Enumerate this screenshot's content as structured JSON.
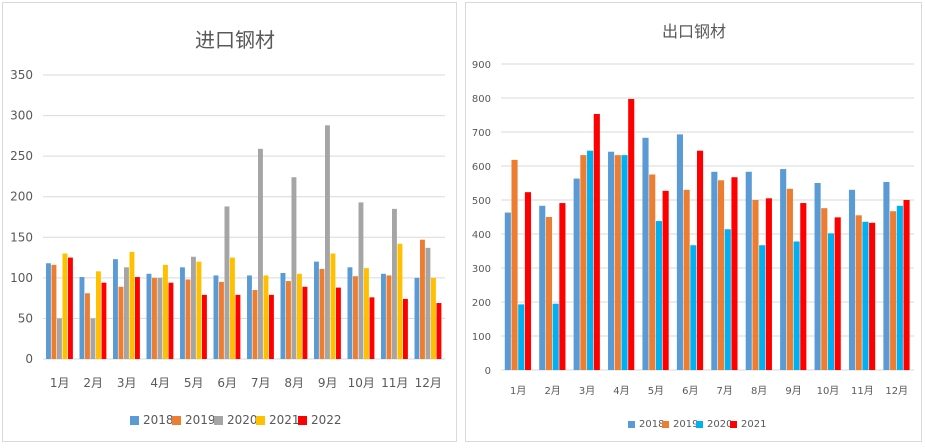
{
  "chart_data": [
    {
      "type": "bar",
      "title": "进口钢材",
      "categories": [
        "1月",
        "2月",
        "3月",
        "4月",
        "5月",
        "6月",
        "7月",
        "8月",
        "9月",
        "10月",
        "11月",
        "12月"
      ],
      "ylim": [
        0,
        350
      ],
      "yticks": [
        0,
        50,
        100,
        150,
        200,
        250,
        300,
        350
      ],
      "grid": true,
      "legend_position": "bottom",
      "series": [
        {
          "name": "2018",
          "color": "#5b9bd5",
          "values": [
            118,
            101,
            123,
            105,
            113,
            103,
            103,
            106,
            120,
            113,
            105,
            100
          ]
        },
        {
          "name": "2019",
          "color": "#ed7d31",
          "values": [
            116,
            81,
            89,
            100,
            98,
            95,
            85,
            96,
            111,
            102,
            103,
            147
          ]
        },
        {
          "name": "2020",
          "color": "#a5a5a5",
          "values": [
            50,
            50,
            113,
            100,
            126,
            188,
            259,
            224,
            288,
            193,
            185,
            137
          ]
        },
        {
          "name": "2021",
          "color": "#ffc000",
          "values": [
            130,
            108,
            132,
            116,
            120,
            125,
            103,
            105,
            130,
            112,
            142,
            100
          ]
        },
        {
          "name": "2022",
          "color": "#ff0000",
          "values": [
            125,
            94,
            101,
            94,
            79,
            79,
            79,
            89,
            88,
            76,
            74,
            69
          ]
        }
      ]
    },
    {
      "type": "bar",
      "title": "出口钢材",
      "categories": [
        "1月",
        "2月",
        "3月",
        "4月",
        "5月",
        "6月",
        "7月",
        "8月",
        "9月",
        "10月",
        "11月",
        "12月"
      ],
      "ylim": [
        0,
        900
      ],
      "yticks": [
        0,
        100,
        200,
        300,
        400,
        500,
        600,
        700,
        800,
        900
      ],
      "grid": true,
      "legend_position": "bottom",
      "series": [
        {
          "name": "2018",
          "color": "#5b9bd5",
          "values": [
            463,
            483,
            563,
            642,
            683,
            693,
            583,
            583,
            591,
            550,
            530,
            553
          ]
        },
        {
          "name": "2019",
          "color": "#ed7d31",
          "values": [
            618,
            450,
            632,
            632,
            575,
            530,
            558,
            500,
            533,
            476,
            455,
            467
          ]
        },
        {
          "name": "2020",
          "color": "#00b0f0",
          "values": [
            193,
            195,
            645,
            632,
            438,
            367,
            414,
            367,
            378,
            402,
            436,
            483
          ]
        },
        {
          "name": "2021",
          "color": "#ff0000",
          "values": [
            523,
            491,
            753,
            797,
            527,
            645,
            567,
            505,
            491,
            449,
            433,
            500
          ]
        }
      ]
    }
  ]
}
